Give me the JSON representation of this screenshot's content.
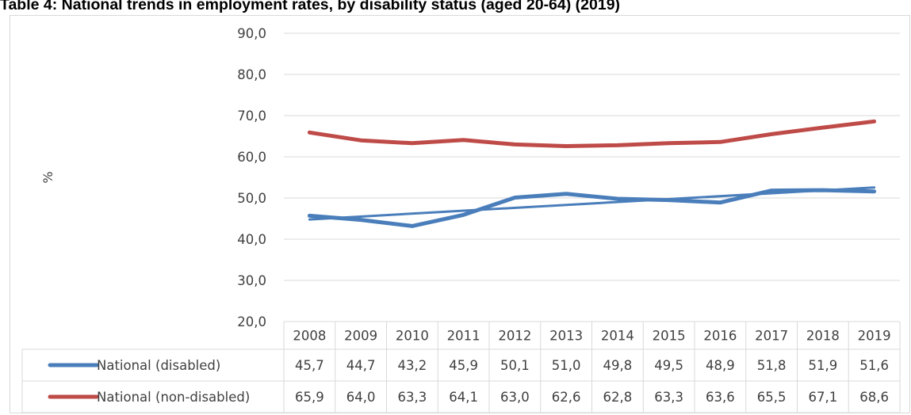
{
  "chart_data": {
    "type": "line",
    "title": "Table 4: National trends in employment rates, by disability status (aged 20-64) (2019)",
    "ylabel": "%",
    "xlabel": "",
    "ylim": [
      20,
      90
    ],
    "y_ticks": [
      "20,0",
      "30,0",
      "40,0",
      "50,0",
      "60,0",
      "70,0",
      "80,0",
      "90,0"
    ],
    "grid": true,
    "legend": "data-table",
    "categories": [
      "2008",
      "2009",
      "2010",
      "2011",
      "2012",
      "2013",
      "2014",
      "2015",
      "2016",
      "2017",
      "2018",
      "2019"
    ],
    "series": [
      {
        "name": "National (disabled)",
        "color": "#4a7ebb",
        "values": [
          45.7,
          44.7,
          43.2,
          45.9,
          50.1,
          51.0,
          49.8,
          49.5,
          48.9,
          51.8,
          51.9,
          51.6
        ],
        "labels": [
          "45,7",
          "44,7",
          "43,2",
          "45,9",
          "50,1",
          "51,0",
          "49,8",
          "49,5",
          "48,9",
          "51,8",
          "51,9",
          "51,6"
        ],
        "trendline": "linear"
      },
      {
        "name": "National (non-disabled)",
        "color": "#be4b48",
        "values": [
          65.9,
          64.0,
          63.3,
          64.1,
          63.0,
          62.6,
          62.8,
          63.3,
          63.6,
          65.5,
          67.1,
          68.6
        ],
        "labels": [
          "65,9",
          "64,0",
          "63,3",
          "64,1",
          "63,0",
          "62,6",
          "62,8",
          "63,3",
          "63,6",
          "65,5",
          "67,1",
          "68,6"
        ]
      }
    ]
  }
}
